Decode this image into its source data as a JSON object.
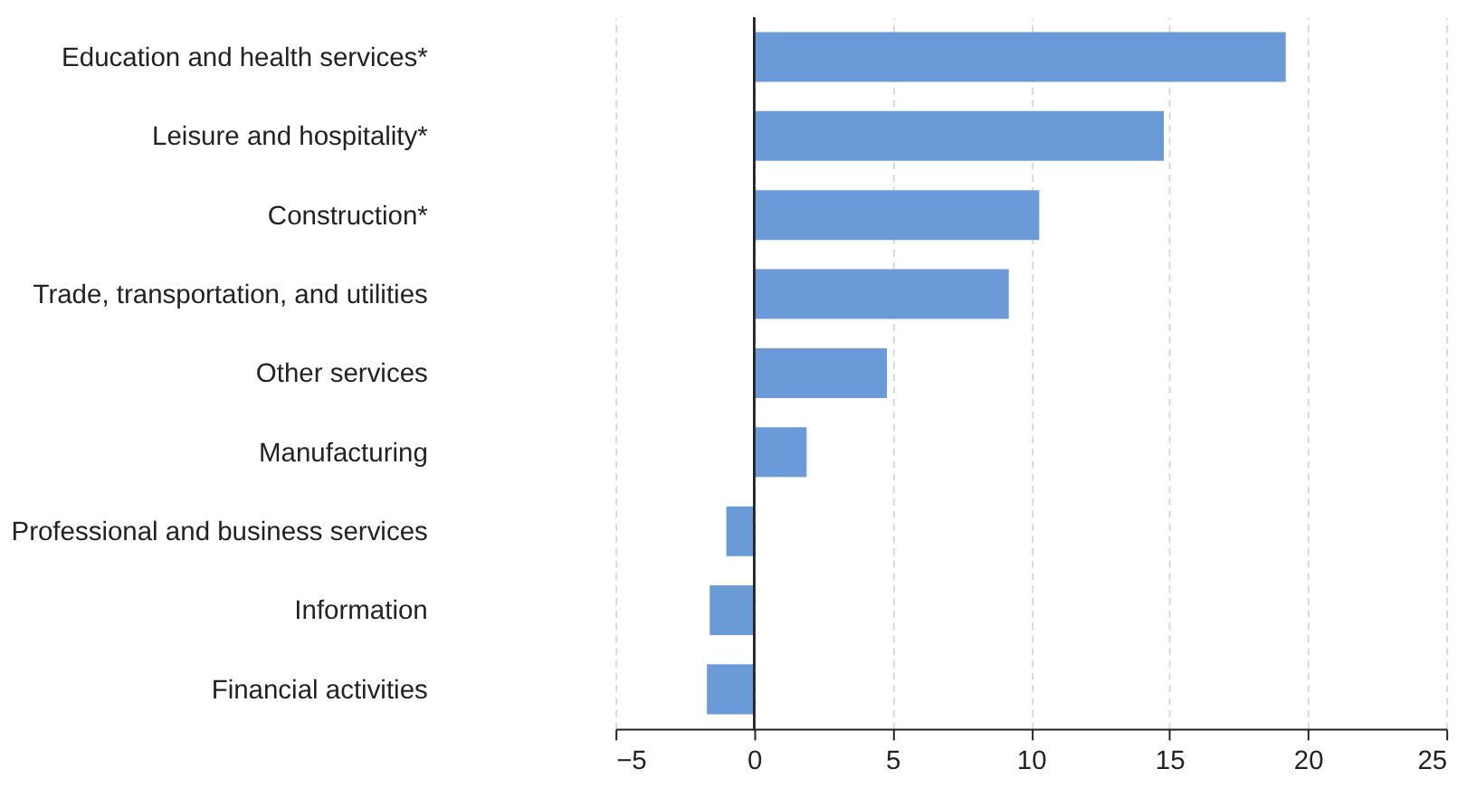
{
  "chart_data": {
    "type": "bar",
    "orientation": "horizontal",
    "categories": [
      "Education and health services*",
      "Leisure and hospitality*",
      "Construction*",
      "Trade, transportation, and utilities",
      "Other services",
      "Manufacturing",
      "Professional and business services",
      "Information",
      "Financial activities"
    ],
    "values": [
      19.2,
      14.8,
      10.3,
      9.2,
      4.8,
      1.9,
      -1.0,
      -1.6,
      -1.7
    ],
    "color": "#6a9ad8",
    "xlim": [
      -5,
      25
    ],
    "xticks": [
      -5,
      0,
      5,
      10,
      15,
      20,
      25
    ],
    "grid": "x"
  }
}
